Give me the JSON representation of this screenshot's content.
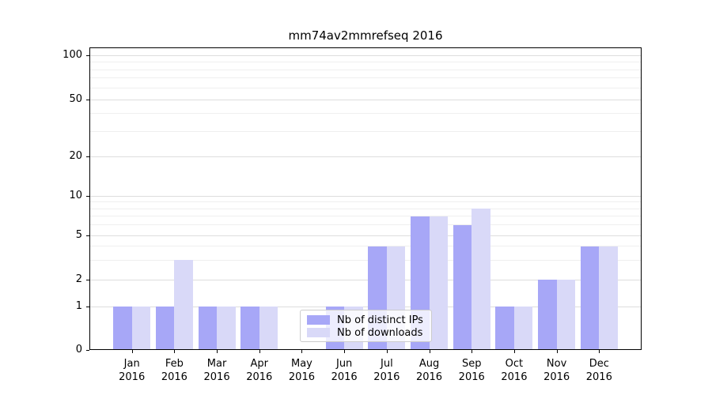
{
  "title": "mm74av2mmrefseq 2016",
  "colors": {
    "distinct_ips": "#a7a7f7",
    "downloads": "#d9d9f8",
    "grid_major": "#dddddd",
    "grid_minor": "#efefef",
    "axis": "#000000"
  },
  "legend": {
    "items": [
      "Nb of distinct IPs",
      "Nb of downloads"
    ]
  },
  "chart_data": {
    "type": "bar",
    "title": "mm74av2mmrefseq 2016",
    "categories": [
      "Jan 2016",
      "Feb 2016",
      "Mar 2016",
      "Apr 2016",
      "May 2016",
      "Jun 2016",
      "Jul 2016",
      "Aug 2016",
      "Sep 2016",
      "Oct 2016",
      "Nov 2016",
      "Dec 2016"
    ],
    "x_months": [
      "Jan",
      "Feb",
      "Mar",
      "Apr",
      "May",
      "Jun",
      "Jul",
      "Aug",
      "Sep",
      "Oct",
      "Nov",
      "Dec"
    ],
    "x_year": "2016",
    "series": [
      {
        "name": "Nb of distinct IPs",
        "color": "#a7a7f7",
        "values": [
          1,
          1,
          1,
          1,
          0,
          1,
          4,
          7,
          6,
          1,
          2,
          4
        ]
      },
      {
        "name": "Nb of downloads",
        "color": "#d9d9f8",
        "values": [
          1,
          3,
          1,
          1,
          0,
          1,
          4,
          7,
          8,
          1,
          2,
          4
        ]
      }
    ],
    "xlabel": "",
    "ylabel": "",
    "y_scale": "symlog",
    "y_ticks": [
      0,
      1,
      2,
      5,
      10,
      20,
      50,
      100
    ],
    "y_minor_gridlines": [
      3,
      4,
      6,
      7,
      8,
      9,
      30,
      40,
      60,
      70,
      80,
      90
    ],
    "ylim": [
      0,
      115
    ],
    "grid": true,
    "legend_position": "lower center"
  }
}
